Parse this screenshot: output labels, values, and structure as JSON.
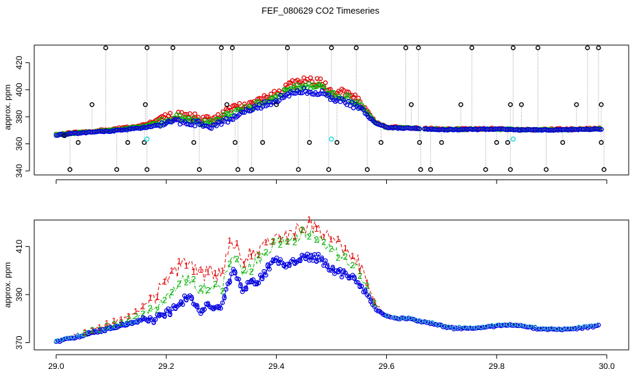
{
  "title": "FEF_080629  CO2 Timeseries",
  "colors": {
    "ch1": "#e00000",
    "ch2": "#00b000",
    "ch3": "#0000e0",
    "black": "#000000",
    "cyan": "#33dddd",
    "spike": "#999999"
  },
  "chart_data": [
    {
      "type": "scatter",
      "ylabel": "approx. ppm",
      "xlim": [
        29.0,
        30.0
      ],
      "ylim": [
        337,
        433
      ],
      "xticks": [
        "29.0",
        "29.2",
        "29.4",
        "29.6",
        "29.8",
        "30.0"
      ],
      "yticks": [
        "340",
        "360",
        "380",
        "400",
        "420"
      ],
      "grid": false,
      "baseline": [
        [
          29.0,
          366.5
        ],
        [
          29.05,
          368.2
        ],
        [
          29.1,
          369.5
        ],
        [
          29.15,
          371.5
        ],
        [
          29.2,
          374.5
        ],
        [
          29.22,
          377
        ],
        [
          29.25,
          375.5
        ],
        [
          29.28,
          373
        ],
        [
          29.3,
          376
        ],
        [
          29.33,
          381
        ],
        [
          29.36,
          386
        ],
        [
          29.39,
          391
        ],
        [
          29.42,
          396
        ],
        [
          29.45,
          399
        ],
        [
          29.48,
          398
        ],
        [
          29.5,
          393
        ],
        [
          29.53,
          391
        ],
        [
          29.56,
          383
        ],
        [
          29.58,
          375
        ],
        [
          29.6,
          372
        ],
        [
          29.65,
          371.5
        ],
        [
          29.7,
          370.5
        ],
        [
          29.8,
          370.8
        ],
        [
          29.85,
          370.3
        ],
        [
          29.9,
          370.3
        ],
        [
          29.95,
          370.6
        ],
        [
          29.99,
          371
        ]
      ],
      "ch1_offset": [
        [
          29.0,
          0.3
        ],
        [
          29.15,
          1.5
        ],
        [
          29.2,
          5
        ],
        [
          29.25,
          4
        ],
        [
          29.32,
          6
        ],
        [
          29.4,
          4
        ],
        [
          29.45,
          9
        ],
        [
          29.5,
          6
        ],
        [
          29.55,
          6
        ],
        [
          29.58,
          1
        ],
        [
          29.6,
          0.3
        ],
        [
          29.99,
          0.3
        ]
      ],
      "ch2_offset": [
        [
          29.0,
          0.1
        ],
        [
          29.15,
          0.8
        ],
        [
          29.2,
          2.5
        ],
        [
          29.25,
          2
        ],
        [
          29.32,
          3
        ],
        [
          29.4,
          2
        ],
        [
          29.45,
          5
        ],
        [
          29.5,
          3
        ],
        [
          29.55,
          3
        ],
        [
          29.58,
          0.5
        ],
        [
          29.6,
          0.1
        ],
        [
          29.99,
          0.1
        ]
      ],
      "gap_start": 29.662,
      "gap_end": 29.668,
      "black_points": [
        [
          29.015,
          366
        ],
        [
          29.025,
          341
        ],
        [
          29.04,
          361
        ],
        [
          29.065,
          389
        ],
        [
          29.09,
          431
        ],
        [
          29.11,
          341
        ],
        [
          29.13,
          361
        ],
        [
          29.16,
          361
        ],
        [
          29.162,
          389
        ],
        [
          29.165,
          341
        ],
        [
          29.165,
          431
        ],
        [
          29.212,
          431
        ],
        [
          29.25,
          361
        ],
        [
          29.26,
          341
        ],
        [
          29.3,
          431
        ],
        [
          29.31,
          389
        ],
        [
          29.32,
          431
        ],
        [
          29.325,
          361
        ],
        [
          29.33,
          341
        ],
        [
          29.355,
          341
        ],
        [
          29.375,
          361
        ],
        [
          29.4,
          389
        ],
        [
          29.42,
          431
        ],
        [
          29.44,
          341
        ],
        [
          29.46,
          361
        ],
        [
          29.495,
          341
        ],
        [
          29.5,
          431
        ],
        [
          29.51,
          361
        ],
        [
          29.545,
          431
        ],
        [
          29.565,
          341
        ],
        [
          29.59,
          361
        ],
        [
          29.635,
          431
        ],
        [
          29.645,
          389
        ],
        [
          29.658,
          431
        ],
        [
          29.66,
          361
        ],
        [
          29.662,
          341
        ],
        [
          29.68,
          341
        ],
        [
          29.7,
          361
        ],
        [
          29.735,
          389
        ],
        [
          29.755,
          431
        ],
        [
          29.78,
          341
        ],
        [
          29.8,
          361
        ],
        [
          29.82,
          361
        ],
        [
          29.825,
          341
        ],
        [
          29.825,
          389
        ],
        [
          29.83,
          431
        ],
        [
          29.845,
          389
        ],
        [
          29.875,
          431
        ],
        [
          29.89,
          341
        ],
        [
          29.92,
          361
        ],
        [
          29.945,
          389
        ],
        [
          29.965,
          431
        ],
        [
          29.985,
          431
        ],
        [
          29.99,
          389
        ],
        [
          29.99,
          361
        ],
        [
          29.995,
          341
        ]
      ],
      "cyan_points": [
        [
          29.165,
          363.5
        ],
        [
          29.5,
          363.5
        ],
        [
          29.83,
          363.5
        ]
      ]
    },
    {
      "type": "line",
      "ylabel": "approx. ppm",
      "xlim": [
        29.0,
        30.0
      ],
      "ylim": [
        367,
        421
      ],
      "xticks": [
        "29.0",
        "29.2",
        "29.4",
        "29.6",
        "29.8",
        "30.0"
      ],
      "yticks": [
        "370",
        "390",
        "410"
      ],
      "grid": false,
      "series": [
        {
          "label": "1",
          "color": "#e00000"
        },
        {
          "label": "2",
          "color": "#00b000"
        },
        {
          "label": "3",
          "color": "#0000e0"
        }
      ],
      "base": [
        [
          29.0,
          370.5
        ],
        [
          29.05,
          373
        ],
        [
          29.1,
          376
        ],
        [
          29.15,
          379
        ],
        [
          29.16,
          380
        ],
        [
          29.17,
          379
        ],
        [
          29.2,
          382
        ],
        [
          29.22,
          386
        ],
        [
          29.24,
          389
        ],
        [
          29.26,
          383
        ],
        [
          29.28,
          386
        ],
        [
          29.3,
          385
        ],
        [
          29.32,
          400
        ],
        [
          29.34,
          392
        ],
        [
          29.37,
          397
        ],
        [
          29.4,
          404
        ],
        [
          29.42,
          402
        ],
        [
          29.45,
          406
        ],
        [
          29.48,
          405
        ],
        [
          29.5,
          401
        ],
        [
          29.53,
          398
        ],
        [
          29.56,
          392
        ],
        [
          29.58,
          384
        ],
        [
          29.6,
          381
        ],
        [
          29.62,
          380
        ],
        [
          29.64,
          380
        ],
        [
          29.68,
          378
        ],
        [
          29.72,
          376
        ],
        [
          29.76,
          376
        ],
        [
          29.8,
          377
        ],
        [
          29.82,
          377.5
        ],
        [
          29.85,
          377
        ],
        [
          29.88,
          375.5
        ],
        [
          29.92,
          375.5
        ],
        [
          29.95,
          376
        ],
        [
          29.985,
          377
        ]
      ],
      "ch1_spike": [
        [
          29.0,
          0.3
        ],
        [
          29.1,
          2
        ],
        [
          29.15,
          4
        ],
        [
          29.2,
          13
        ],
        [
          29.24,
          15
        ],
        [
          29.3,
          13
        ],
        [
          29.35,
          13
        ],
        [
          29.4,
          12
        ],
        [
          29.45,
          13
        ],
        [
          29.5,
          11
        ],
        [
          29.55,
          9
        ],
        [
          29.57,
          3
        ],
        [
          29.6,
          0.5
        ],
        [
          29.99,
          0.3
        ]
      ],
      "ch2_spike": [
        [
          29.0,
          0.1
        ],
        [
          29.1,
          1
        ],
        [
          29.15,
          2
        ],
        [
          29.2,
          6
        ],
        [
          29.24,
          9
        ],
        [
          29.3,
          7
        ],
        [
          29.35,
          7
        ],
        [
          29.4,
          9
        ],
        [
          29.45,
          10
        ],
        [
          29.5,
          7
        ],
        [
          29.55,
          6
        ],
        [
          29.57,
          2
        ],
        [
          29.6,
          0.2
        ],
        [
          29.99,
          0.2
        ]
      ],
      "gap_start": 29.608,
      "gap_end": 29.612
    }
  ]
}
